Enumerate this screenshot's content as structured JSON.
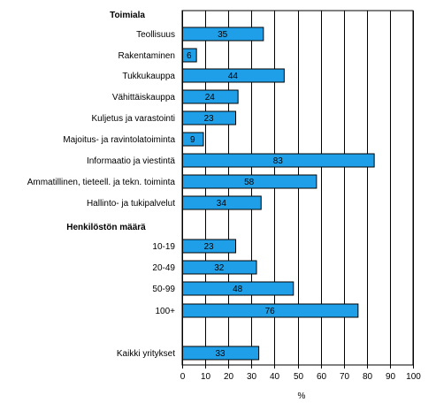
{
  "chart_data": {
    "type": "bar",
    "orientation": "horizontal",
    "xlabel": "%",
    "xlim": [
      0,
      100
    ],
    "xticks": [
      "0",
      "10",
      "20",
      "30",
      "40",
      "50",
      "60",
      "70",
      "80",
      "90",
      "100"
    ],
    "grid": "vertical gridlines",
    "bar_color": "#1e9fe8",
    "bar_edge_color": "#000000",
    "groups": [
      {
        "heading": "Toimiala",
        "rows": [
          {
            "label": "Teollisuus",
            "value": 35
          },
          {
            "label": "Rakentaminen",
            "value": 6
          },
          {
            "label": "Tukkukauppa",
            "value": 44
          },
          {
            "label": "Vähittäiskauppa",
            "value": 24
          },
          {
            "label": "Kuljetus ja varastointi",
            "value": 23
          },
          {
            "label": "Majoitus- ja ravintolatoiminta",
            "value": 9
          },
          {
            "label": "Informaatio ja viestintä",
            "value": 83
          },
          {
            "label": "Ammatillinen, tieteell. ja tekn. toiminta",
            "value": 58
          },
          {
            "label": "Hallinto- ja tukipalvelut",
            "value": 34
          }
        ]
      },
      {
        "heading": "Henkilöstön määrä",
        "rows": [
          {
            "label": "10-19",
            "value": 23
          },
          {
            "label": "20-49",
            "value": 32
          },
          {
            "label": "50-99",
            "value": 48
          },
          {
            "label": "100+",
            "value": 76
          }
        ]
      },
      {
        "heading": "",
        "rows": [
          {
            "label": "Kaikki yritykset",
            "value": 33
          }
        ]
      }
    ]
  }
}
